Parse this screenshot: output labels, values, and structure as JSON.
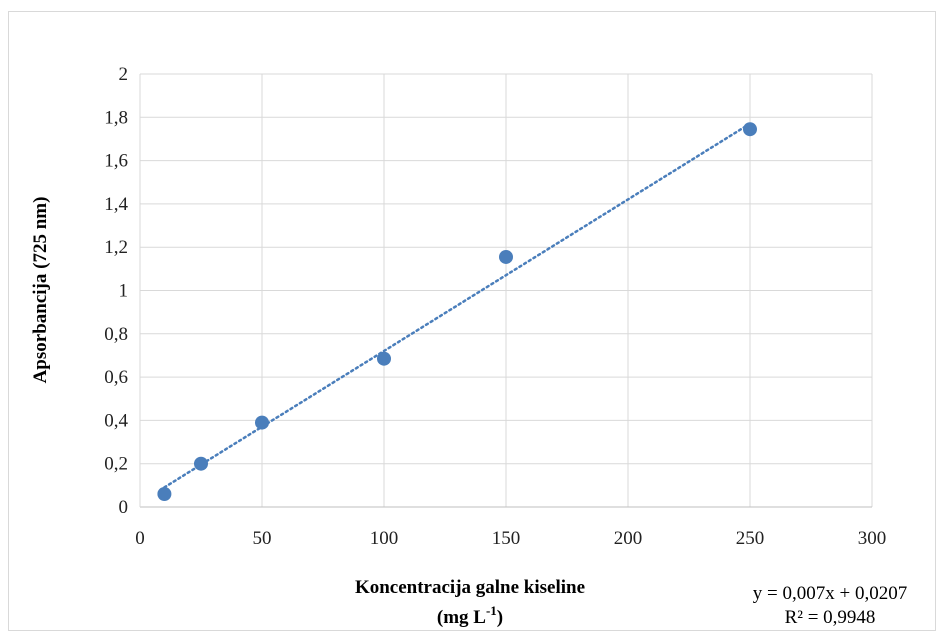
{
  "chart_data": {
    "type": "scatter",
    "title": "",
    "xlabel_line1": "Koncentracija galne kiseline",
    "xlabel_line2_prefix": "(mg L",
    "xlabel_line2_sup": "-1",
    "xlabel_line2_suffix": ")",
    "ylabel": "Apsorbancija (725 nm)",
    "xlim": [
      0,
      300
    ],
    "ylim": [
      0,
      2
    ],
    "x_ticks": [
      0,
      50,
      100,
      150,
      200,
      250,
      300
    ],
    "y_ticks": [
      0,
      0.2,
      0.4,
      0.6,
      0.8,
      1,
      1.2,
      1.4,
      1.6,
      1.8,
      2
    ],
    "y_tick_labels": [
      "0",
      "0,2",
      "0,4",
      "0,6",
      "0,8",
      "1",
      "1,2",
      "1,4",
      "1,6",
      "1,8",
      "2"
    ],
    "x_tick_labels": [
      "0",
      "50",
      "100",
      "150",
      "200",
      "250",
      "300"
    ],
    "grid": true,
    "series": [
      {
        "x": [
          10,
          25,
          50,
          100,
          150,
          250
        ],
        "y": [
          0.06,
          0.2,
          0.39,
          0.685,
          1.155,
          1.745
        ],
        "color": "#4a7ebb"
      }
    ],
    "trendline": {
      "slope": 0.007,
      "intercept": 0.0207,
      "x_range": [
        10,
        250
      ],
      "equation": "y = 0,007x + 0,0207",
      "r_squared": "R² = 0,9948",
      "color": "#4a7ebb",
      "style": "dotted"
    }
  }
}
